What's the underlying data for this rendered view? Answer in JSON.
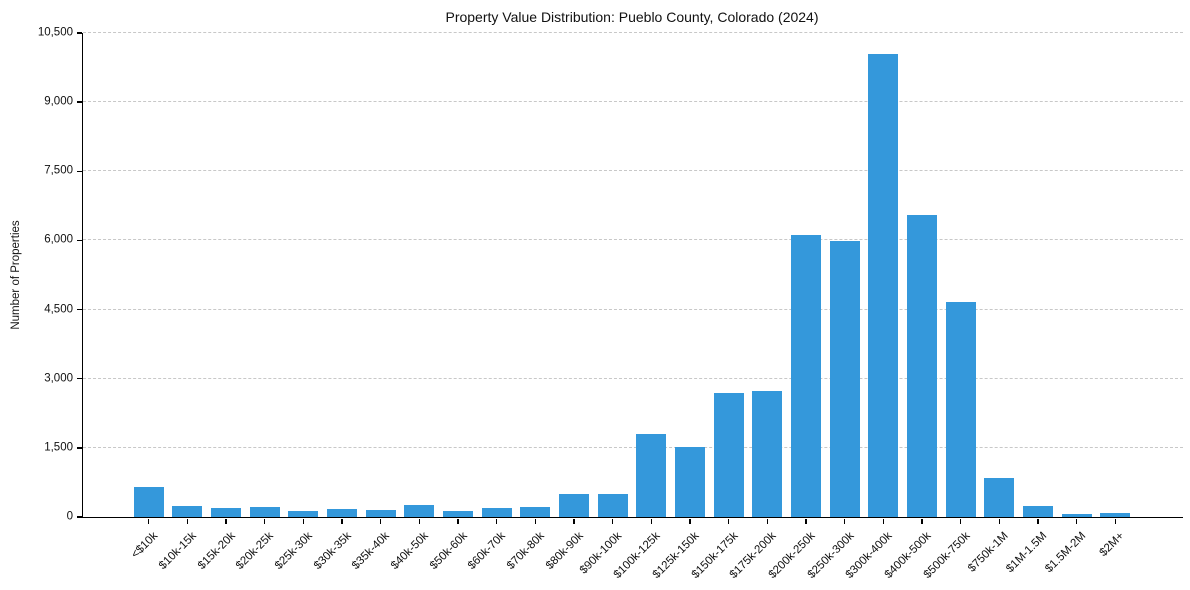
{
  "chart_data": {
    "type": "bar",
    "title": "Property Value Distribution: Pueblo County, Colorado (2024)",
    "xlabel": "",
    "ylabel": "Number of Properties",
    "categories": [
      "<$10k",
      "$10k-15k",
      "$15k-20k",
      "$20k-25k",
      "$25k-30k",
      "$30k-35k",
      "$35k-40k",
      "$40k-50k",
      "$50k-60k",
      "$60k-70k",
      "$70k-80k",
      "$80k-90k",
      "$90k-100k",
      "$100k-125k",
      "$125k-150k",
      "$150k-175k",
      "$175k-200k",
      "$200k-250k",
      "$250k-300k",
      "$300k-400k",
      "$400k-500k",
      "$500k-750k",
      "$750k-1M",
      "$1M-1.5M",
      "$1.5M-2M",
      "$2M+"
    ],
    "values": [
      660,
      240,
      185,
      220,
      125,
      165,
      150,
      270,
      140,
      190,
      210,
      510,
      500,
      1810,
      1510,
      2700,
      2740,
      6120,
      5980,
      10050,
      6560,
      4670,
      850,
      240,
      70,
      95
    ],
    "ylim": [
      0,
      10500
    ],
    "yticks": [
      0,
      1500,
      3000,
      4500,
      6000,
      7500,
      9000,
      10500
    ],
    "ytick_labels": [
      "0",
      "1,500",
      "3,000",
      "4,500",
      "6,000",
      "7,500",
      "9,000",
      "10,500"
    ],
    "grid": "horizontal-dashed",
    "legend": "none",
    "colors": {
      "bar": "#3498db",
      "grid": "#c8c8c8",
      "axis": "#000000",
      "text": "#111111",
      "background": "#ffffff"
    }
  }
}
